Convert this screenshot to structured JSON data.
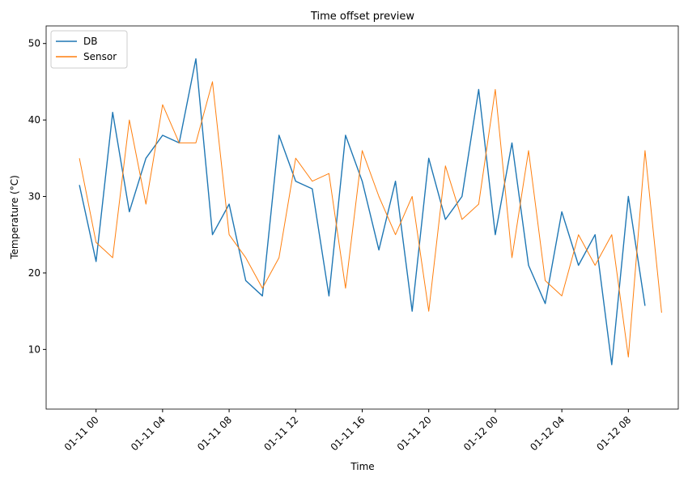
{
  "chart_data": {
    "type": "line",
    "title": "Time offset preview",
    "x_label": "Time",
    "y_label": "Temperature (°C)",
    "x": [
      "01-10 23",
      "01-11 00",
      "01-11 01",
      "01-11 02",
      "01-11 03",
      "01-11 04",
      "01-11 05",
      "01-11 06",
      "01-11 07",
      "01-11 08",
      "01-11 09",
      "01-11 10",
      "01-11 11",
      "01-11 12",
      "01-11 13",
      "01-11 14",
      "01-11 15",
      "01-11 16",
      "01-11 17",
      "01-11 18",
      "01-11 19",
      "01-11 20",
      "01-11 21",
      "01-11 22",
      "01-11 23",
      "01-12 00",
      "01-12 01",
      "01-12 02",
      "01-12 03",
      "01-12 04",
      "01-12 05",
      "01-12 06",
      "01-12 07",
      "01-12 08",
      "01-12 09",
      "01-12 10"
    ],
    "series": [
      {
        "name": "DB",
        "color": "#1f77b4",
        "values": [
          31.5,
          21.5,
          41,
          28,
          35,
          38,
          37,
          48,
          25,
          29,
          19,
          17,
          38,
          32,
          31,
          17,
          38,
          32,
          23,
          32,
          15,
          35,
          27,
          30,
          44,
          25,
          37,
          21,
          16,
          28,
          21,
          25,
          8,
          30,
          15.7,
          null
        ]
      },
      {
        "name": "Sensor",
        "color": "#ff7f0e",
        "values": [
          35,
          24,
          22,
          40,
          29,
          42,
          37,
          37,
          45,
          25,
          22,
          18,
          22,
          35,
          32,
          33,
          18,
          36,
          30,
          25,
          30,
          15,
          34,
          27,
          29,
          44,
          22,
          36,
          19,
          17,
          25,
          21,
          25,
          9,
          36,
          14.8
        ]
      }
    ],
    "xlim": [
      "01-10 21",
      "01-12 11"
    ],
    "xticks": [
      "01-11 00",
      "01-11 04",
      "01-11 08",
      "01-11 12",
      "01-11 16",
      "01-11 20",
      "01-12 00",
      "01-12 04",
      "01-12 08"
    ],
    "ylim": [
      2.2,
      52.3
    ],
    "yticks": [
      10,
      20,
      30,
      40,
      50
    ],
    "legend": "upper left"
  }
}
